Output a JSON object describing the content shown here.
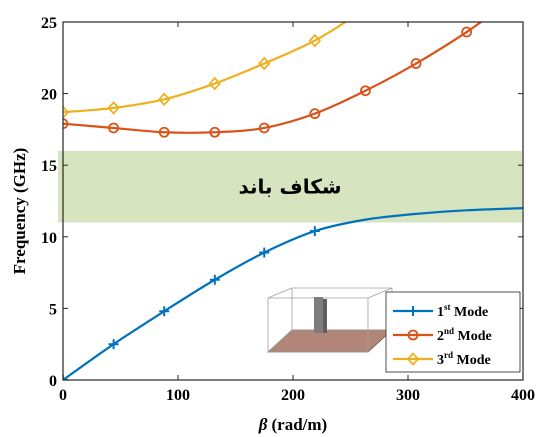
{
  "chart_data": {
    "type": "line",
    "xlabel_symbol": "β",
    "xlabel_unit": "(rad/m)",
    "ylabel": "Frequency (GHz)",
    "xlim": [
      0,
      400
    ],
    "ylim": [
      0,
      25
    ],
    "xticks": [
      "0",
      "100",
      "200",
      "300",
      "400"
    ],
    "yticks": [
      "0",
      "5",
      "10",
      "15",
      "20",
      "25"
    ],
    "grid": false,
    "legend_position": "bottom-right",
    "band": {
      "label": "شکاف باند",
      "y_range": [
        11.0,
        16.0
      ],
      "color": "#d6e4bf"
    },
    "series": [
      {
        "legend_base": "1",
        "legend_sup": "st",
        "legend_suffix": " Mode",
        "color": "#0072bd",
        "marker": "plus",
        "x": [
          0,
          44,
          88,
          132,
          175,
          219,
          263,
          307,
          351,
          400
        ],
        "y": [
          0,
          2.5,
          4.8,
          7.0,
          8.9,
          10.4,
          11.2,
          11.6,
          11.85,
          12.0
        ],
        "markers_x": [
          0,
          44,
          88,
          132,
          175,
          219
        ]
      },
      {
        "legend_base": "2",
        "legend_sup": "nd",
        "legend_suffix": " Mode",
        "color": "#d95319",
        "marker": "circle",
        "x": [
          0,
          44,
          88,
          132,
          175,
          219,
          263,
          307,
          351,
          380
        ],
        "y": [
          17.9,
          17.6,
          17.3,
          17.3,
          17.6,
          18.6,
          20.2,
          22.1,
          24.3,
          26.0
        ],
        "markers_x": [
          0,
          44,
          88,
          132,
          175,
          219,
          263,
          307,
          351
        ]
      },
      {
        "legend_base": "3",
        "legend_sup": "rd",
        "legend_suffix": " Mode",
        "color": "#edb120",
        "marker": "diamond",
        "x": [
          0,
          44,
          88,
          132,
          175,
          219,
          255
        ],
        "y": [
          18.7,
          19.0,
          19.6,
          20.7,
          22.1,
          23.7,
          25.5
        ],
        "markers_x": [
          0,
          44,
          88,
          132,
          175,
          219
        ]
      }
    ]
  }
}
